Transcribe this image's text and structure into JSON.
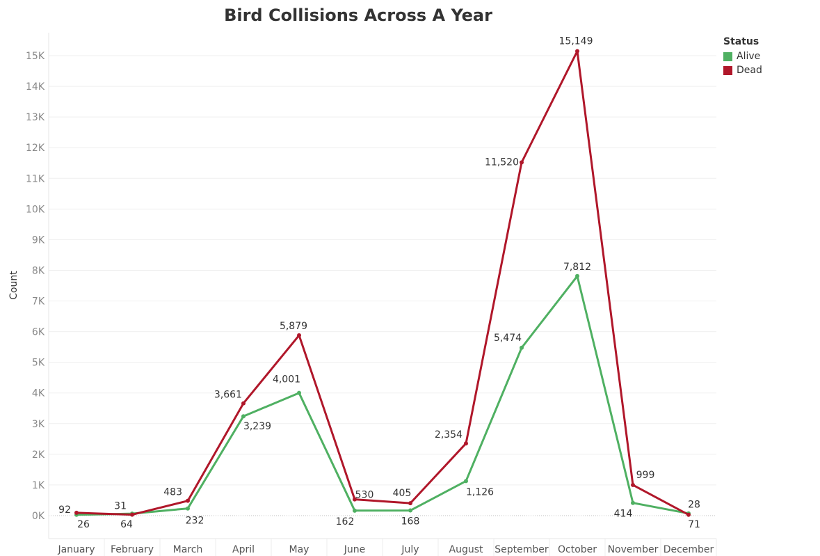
{
  "chart_data": {
    "type": "line",
    "title": "Bird Collisions Across A Year",
    "xlabel": "",
    "ylabel": "Count",
    "categories": [
      "January",
      "February",
      "March",
      "April",
      "May",
      "June",
      "July",
      "August",
      "September",
      "October",
      "November",
      "December"
    ],
    "ylim": [
      -750,
      15750
    ],
    "yticks": [
      0,
      1000,
      2000,
      3000,
      4000,
      5000,
      6000,
      7000,
      8000,
      9000,
      10000,
      11000,
      12000,
      13000,
      14000,
      15000
    ],
    "ytick_labels": [
      "0K",
      "1K",
      "2K",
      "3K",
      "4K",
      "5K",
      "6K",
      "7K",
      "8K",
      "9K",
      "10K",
      "11K",
      "12K",
      "13K",
      "14K",
      "15K"
    ],
    "grid": true,
    "legend_position": "top-right",
    "legend_title": "Status",
    "series": [
      {
        "name": "Alive",
        "color": "#4fb062",
        "values": [
          26,
          64,
          232,
          3239,
          4001,
          162,
          168,
          1126,
          5474,
          7812,
          414,
          71
        ],
        "labels": [
          "26",
          "64",
          "232",
          "3,239",
          "4,001",
          "162",
          "168",
          "1,126",
          "5,474",
          "7,812",
          "414",
          "71"
        ]
      },
      {
        "name": "Dead",
        "color": "#b0172a",
        "values": [
          92,
          31,
          483,
          3661,
          5879,
          530,
          405,
          2354,
          11520,
          15149,
          999,
          28
        ],
        "labels": [
          "92",
          "31",
          "483",
          "3,661",
          "5,879",
          "530",
          "405",
          "2,354",
          "11,520",
          "15,149",
          "999",
          "28"
        ]
      }
    ]
  }
}
